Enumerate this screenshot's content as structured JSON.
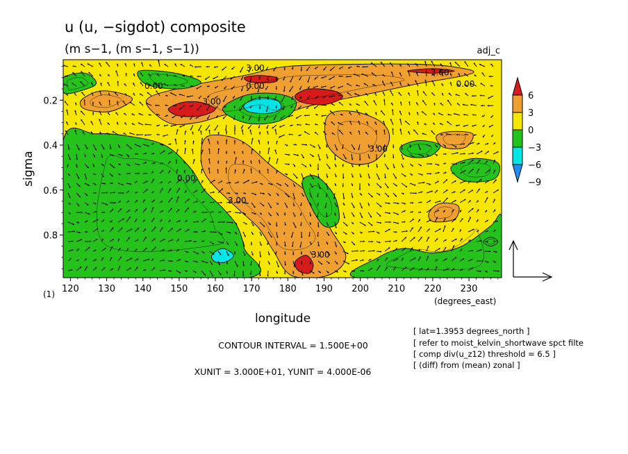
{
  "chart_data": {
    "type": "heatmap",
    "title": "u (u, −sigdot) composite",
    "subtitle": "(m s−1, (m s−1, s−1))",
    "tag": "adj_c",
    "xlabel": "longitude",
    "xunits": "(degrees_east)",
    "ylabel": "sigma",
    "yunits": "(1)",
    "xlim": [
      118,
      239
    ],
    "ylim": [
      0.02,
      0.99
    ],
    "y_inverted": true,
    "xticks": [
      "120",
      "130",
      "140",
      "150",
      "160",
      "170",
      "180",
      "190",
      "200",
      "210",
      "220",
      "230"
    ],
    "yticks": [
      "0.2",
      "0.4",
      "0.6",
      "0.8"
    ],
    "legend": {
      "placement": "right",
      "labels": [
        "6",
        "3",
        "0",
        "−3",
        "−6",
        "−9"
      ],
      "colors": [
        "#d71a1a",
        "#f0a030",
        "#f7e600",
        "#25c21c",
        "#00e6e6",
        "#1e8ff0"
      ]
    },
    "contour_labels": [
      {
        "text": "3.00",
        "x": 171,
        "y": 0.07
      },
      {
        "text": "3.00",
        "x": 222,
        "y": 0.09
      },
      {
        "text": "0.00",
        "x": 143,
        "y": 0.15
      },
      {
        "text": "0.00",
        "x": 171,
        "y": 0.15
      },
      {
        "text": "0.00",
        "x": 229,
        "y": 0.14
      },
      {
        "text": "3.00",
        "x": 159,
        "y": 0.22
      },
      {
        "text": "3.00",
        "x": 205,
        "y": 0.43
      },
      {
        "text": "0.00",
        "x": 152,
        "y": 0.56
      },
      {
        "text": "3.00",
        "x": 166,
        "y": 0.66
      },
      {
        "text": "3.00",
        "x": 189,
        "y": 0.9
      }
    ],
    "regions": [
      {
        "level": "3",
        "color": "#f0a030",
        "poly": [
          [
            141,
            0.2
          ],
          [
            152,
            0.14
          ],
          [
            168,
            0.09
          ],
          [
            180,
            0.05
          ],
          [
            200,
            0.04
          ],
          [
            215,
            0.04
          ],
          [
            225,
            0.05
          ],
          [
            231,
            0.08
          ],
          [
            215,
            0.13
          ],
          [
            200,
            0.18
          ],
          [
            185,
            0.23
          ],
          [
            172,
            0.3
          ],
          [
            165,
            0.26
          ],
          [
            155,
            0.3
          ],
          [
            147,
            0.3
          ]
        ]
      },
      {
        "level": "3",
        "color": "#f0a030",
        "poly": [
          [
            158,
            0.36
          ],
          [
            167,
            0.38
          ],
          [
            176,
            0.5
          ],
          [
            186,
            0.62
          ],
          [
            192,
            0.78
          ],
          [
            196,
            0.9
          ],
          [
            191,
            0.98
          ],
          [
            181,
            0.98
          ],
          [
            176,
            0.87
          ],
          [
            172,
            0.77
          ],
          [
            166,
            0.68
          ],
          [
            158,
            0.55
          ],
          [
            156,
            0.45
          ]
        ]
      },
      {
        "level": "3",
        "color": "#f0a030",
        "poly": [
          [
            191,
            0.27
          ],
          [
            198,
            0.25
          ],
          [
            206,
            0.3
          ],
          [
            208,
            0.38
          ],
          [
            204,
            0.47
          ],
          [
            197,
            0.48
          ],
          [
            191,
            0.4
          ]
        ]
      },
      {
        "level": "3",
        "color": "#f0a030",
        "poly": [
          [
            123,
            0.2
          ],
          [
            128,
            0.16
          ],
          [
            134,
            0.17
          ],
          [
            137,
            0.2
          ],
          [
            131,
            0.25
          ],
          [
            124,
            0.24
          ]
        ]
      },
      {
        "level": "3",
        "color": "#f0a030",
        "poly": [
          [
            221,
            0.36
          ],
          [
            225,
            0.34
          ],
          [
            231,
            0.35
          ],
          [
            229,
            0.41
          ],
          [
            223,
            0.41
          ]
        ]
      },
      {
        "level": "3",
        "color": "#f0a030",
        "poly": [
          [
            219,
            0.7
          ],
          [
            222,
            0.66
          ],
          [
            227,
            0.67
          ],
          [
            226,
            0.73
          ],
          [
            220,
            0.74
          ]
        ]
      },
      {
        "level": "-3",
        "color": "#25c21c",
        "poly": [
          [
            118,
            0.38
          ],
          [
            127,
            0.35
          ],
          [
            136,
            0.36
          ],
          [
            146,
            0.4
          ],
          [
            153,
            0.5
          ],
          [
            157,
            0.6
          ],
          [
            162,
            0.68
          ],
          [
            166,
            0.76
          ],
          [
            168,
            0.86
          ],
          [
            169,
            0.99
          ],
          [
            118,
            0.99
          ]
        ]
      },
      {
        "level": "-3",
        "color": "#25c21c",
        "poly": [
          [
            199,
            0.99
          ],
          [
            205,
            0.9
          ],
          [
            212,
            0.86
          ],
          [
            220,
            0.88
          ],
          [
            228,
            0.85
          ],
          [
            236,
            0.76
          ],
          [
            239,
            0.72
          ],
          [
            239,
            0.99
          ]
        ]
      },
      {
        "level": "-3",
        "color": "#25c21c",
        "poly": [
          [
            139,
            0.07
          ],
          [
            149,
            0.08
          ],
          [
            156,
            0.12
          ],
          [
            150,
            0.15
          ],
          [
            141,
            0.13
          ]
        ]
      },
      {
        "level": "-3",
        "color": "#25c21c",
        "poly": [
          [
            162,
            0.24
          ],
          [
            168,
            0.18
          ],
          [
            176,
            0.17
          ],
          [
            182,
            0.2
          ],
          [
            181,
            0.26
          ],
          [
            176,
            0.3
          ],
          [
            168,
            0.3
          ]
        ]
      },
      {
        "level": "-3",
        "color": "#25c21c",
        "poly": [
          [
            184,
            0.56
          ],
          [
            188,
            0.54
          ],
          [
            193,
            0.63
          ],
          [
            194,
            0.74
          ],
          [
            190,
            0.76
          ],
          [
            186,
            0.66
          ]
        ]
      },
      {
        "level": "-3",
        "color": "#25c21c",
        "poly": [
          [
            211,
            0.41
          ],
          [
            216,
            0.38
          ],
          [
            222,
            0.4
          ],
          [
            219,
            0.45
          ],
          [
            213,
            0.45
          ]
        ]
      },
      {
        "level": "-3",
        "color": "#25c21c",
        "poly": [
          [
            118,
            0.1
          ],
          [
            124,
            0.08
          ],
          [
            127,
            0.13
          ],
          [
            120,
            0.17
          ],
          [
            118,
            0.16
          ]
        ]
      },
      {
        "level": "-3",
        "color": "#25c21c",
        "poly": [
          [
            225,
            0.5
          ],
          [
            231,
            0.46
          ],
          [
            238,
            0.48
          ],
          [
            237,
            0.55
          ],
          [
            229,
            0.56
          ]
        ]
      },
      {
        "level": "-3",
        "color": "#25c21c",
        "poly": [
          [
            236,
            0.81
          ],
          [
            238,
            0.83
          ],
          [
            236,
            0.85
          ],
          [
            234,
            0.83
          ]
        ]
      },
      {
        "level": "-6",
        "color": "#00e6e6",
        "poly": [
          [
            168,
            0.22
          ],
          [
            172,
            0.19
          ],
          [
            177,
            0.2
          ],
          [
            178,
            0.24
          ],
          [
            174,
            0.26
          ],
          [
            169,
            0.25
          ]
        ]
      },
      {
        "level": "-6",
        "color": "#00e6e6",
        "poly": [
          [
            159,
            0.89
          ],
          [
            162,
            0.86
          ],
          [
            165,
            0.89
          ],
          [
            163,
            0.92
          ],
          [
            160,
            0.92
          ]
        ]
      },
      {
        "level": "6",
        "color": "#d71a1a",
        "poly": [
          [
            147,
            0.24
          ],
          [
            151,
            0.21
          ],
          [
            156,
            0.21
          ],
          [
            160,
            0.24
          ],
          [
            156,
            0.27
          ],
          [
            150,
            0.27
          ]
        ]
      },
      {
        "level": "6",
        "color": "#d71a1a",
        "poly": [
          [
            182,
            0.18
          ],
          [
            186,
            0.15
          ],
          [
            193,
            0.16
          ],
          [
            195,
            0.19
          ],
          [
            190,
            0.22
          ],
          [
            184,
            0.21
          ]
        ]
      },
      {
        "level": "6",
        "color": "#d71a1a",
        "poly": [
          [
            168,
            0.1
          ],
          [
            172,
            0.09
          ],
          [
            177,
            0.1
          ],
          [
            176,
            0.12
          ],
          [
            170,
            0.12
          ]
        ]
      },
      {
        "level": "6",
        "color": "#d71a1a",
        "poly": [
          [
            182,
            0.92
          ],
          [
            185,
            0.89
          ],
          [
            187,
            0.93
          ],
          [
            186,
            0.97
          ],
          [
            183,
            0.96
          ]
        ]
      },
      {
        "level": "6",
        "color": "#d71a1a",
        "poly": [
          [
            213,
            0.07
          ],
          [
            220,
            0.06
          ],
          [
            226,
            0.07
          ],
          [
            220,
            0.08
          ]
        ]
      }
    ],
    "vector_reference": {
      "xunit": 30.0,
      "yunit": 4e-06
    }
  },
  "footer": {
    "contour_interval": "CONTOUR INTERVAL = 1.500E+00",
    "units": "XUNIT = 3.000E+01, YUNIT = 4.000E-06"
  },
  "notes": [
    "[ lat=1.3953 degrees_north ]",
    "[ refer to moist_kelvin_shortwave spct filte",
    "[ comp div(u_z12) threshold = 6.5 ]",
    "[ (diff) from (mean) zonal ]"
  ]
}
